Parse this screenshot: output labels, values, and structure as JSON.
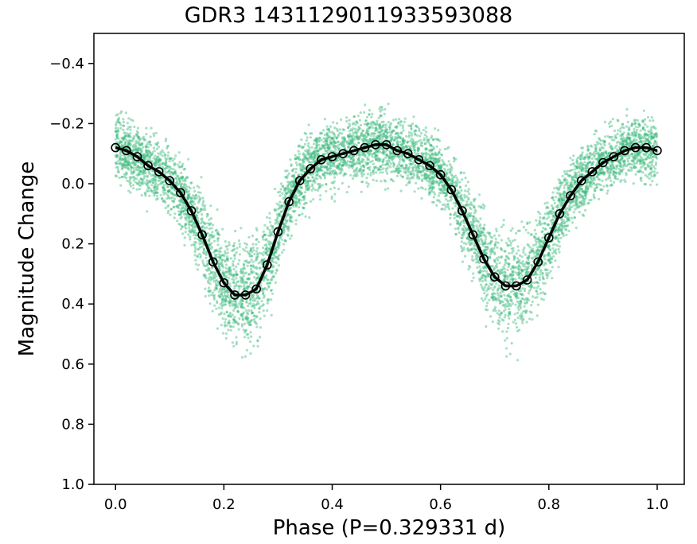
{
  "chart_data": {
    "type": "scatter",
    "title": "GDR3 1431129011933593088",
    "xlabel": "Phase (P=0.329331 d)",
    "ylabel": "Magnitude Change",
    "xlim": [
      -0.04,
      1.05
    ],
    "ylim": [
      1.0,
      -0.5
    ],
    "y_inverted": true,
    "grid": false,
    "x_ticks": [
      0.0,
      0.2,
      0.4,
      0.6,
      0.8,
      1.0
    ],
    "x_tick_labels": [
      "0.0",
      "0.2",
      "0.4",
      "0.6",
      "0.8",
      "1.0"
    ],
    "y_ticks": [
      -0.4,
      -0.2,
      0.0,
      0.2,
      0.4,
      0.6,
      0.8,
      1.0
    ],
    "y_tick_labels": [
      "−0.4",
      "−0.2",
      "0.0",
      "0.2",
      "0.4",
      "0.6",
      "0.8",
      "1.0"
    ],
    "raw_points_color": "#3dbb7e",
    "binned_color": "#000000",
    "series": [
      {
        "style": "binned_circles_with_curve",
        "x": [
          0.0,
          0.02,
          0.04,
          0.06,
          0.08,
          0.1,
          0.12,
          0.14,
          0.16,
          0.18,
          0.2,
          0.22,
          0.24,
          0.26,
          0.28,
          0.3,
          0.32,
          0.34,
          0.36,
          0.38,
          0.4,
          0.42,
          0.44,
          0.46,
          0.48,
          0.5,
          0.52,
          0.54,
          0.56,
          0.58,
          0.6,
          0.62,
          0.64,
          0.66,
          0.68,
          0.7,
          0.72,
          0.74,
          0.76,
          0.78,
          0.8,
          0.82,
          0.84,
          0.86,
          0.88,
          0.9,
          0.92,
          0.94,
          0.96,
          0.98,
          1.0
        ],
        "y": [
          -0.12,
          -0.11,
          -0.09,
          -0.06,
          -0.04,
          -0.01,
          0.03,
          0.09,
          0.17,
          0.26,
          0.33,
          0.37,
          0.37,
          0.35,
          0.27,
          0.16,
          0.06,
          -0.01,
          -0.05,
          -0.08,
          -0.09,
          -0.1,
          -0.11,
          -0.12,
          -0.13,
          -0.13,
          -0.11,
          -0.1,
          -0.08,
          -0.06,
          -0.03,
          0.02,
          0.09,
          0.17,
          0.25,
          0.31,
          0.34,
          0.34,
          0.32,
          0.26,
          0.18,
          0.1,
          0.04,
          -0.01,
          -0.04,
          -0.07,
          -0.09,
          -0.11,
          -0.12,
          -0.12,
          -0.11
        ]
      }
    ]
  }
}
